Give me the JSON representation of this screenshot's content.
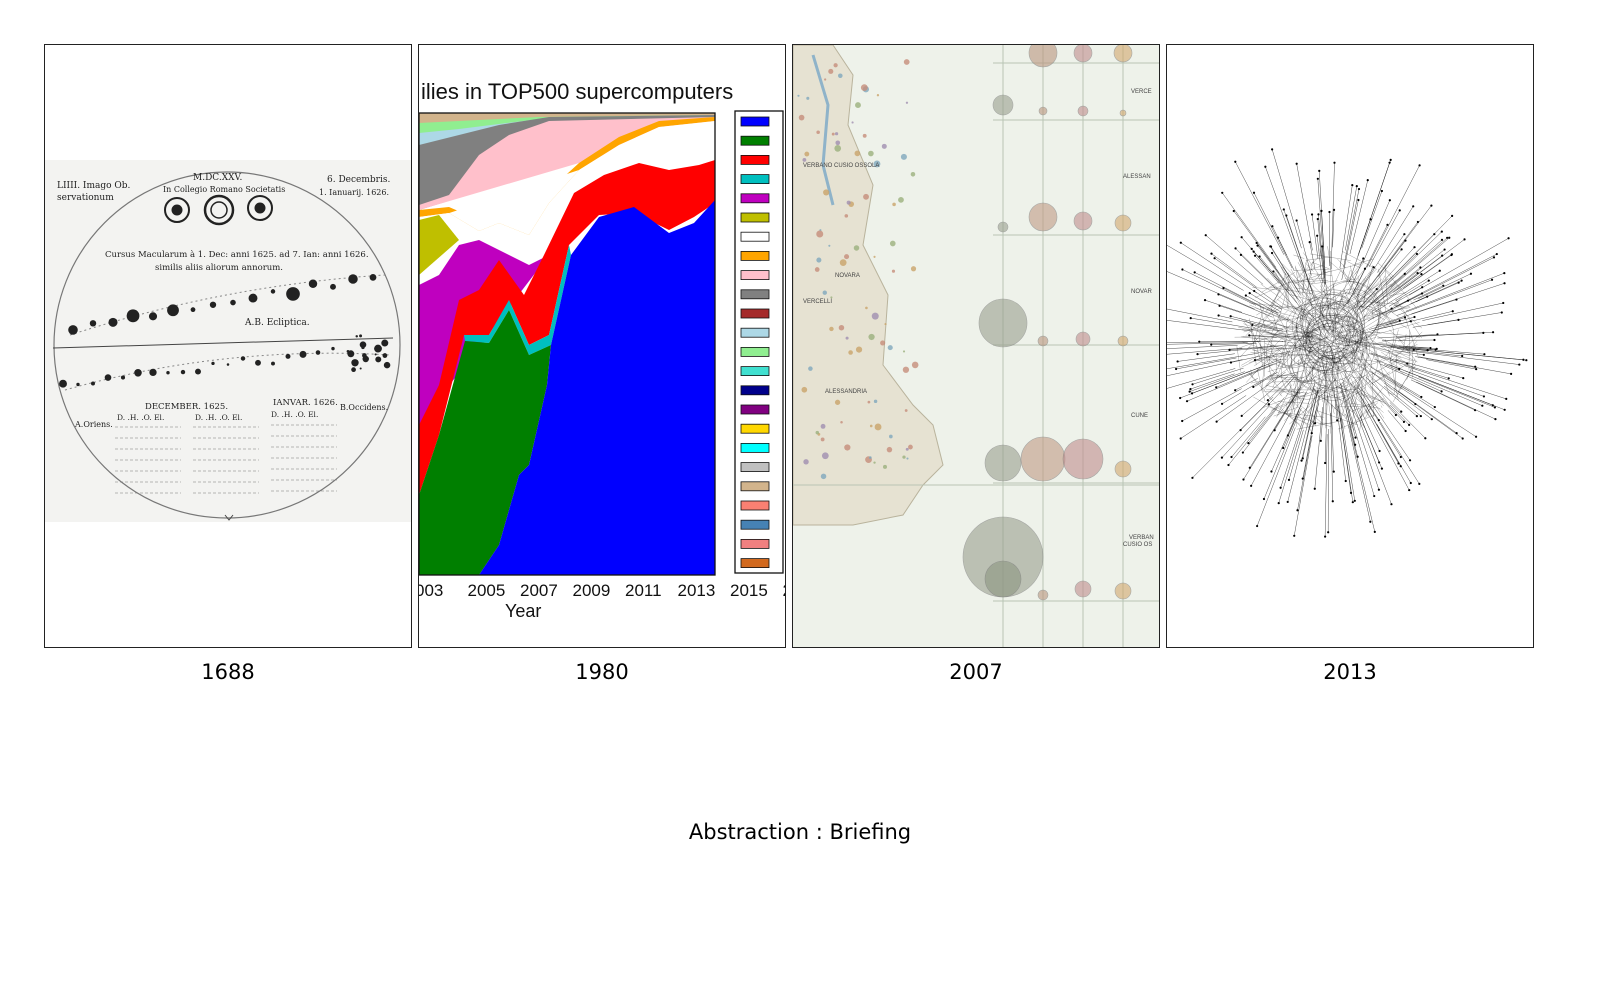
{
  "panels": [
    {
      "caption": "1688",
      "image": {
        "kind": "sunspot-drawing",
        "text": {
          "plate": "LIIII. Imago Ob.",
          "plate_line2": "servationum",
          "year_roman": "M.DC.XXV.",
          "college": "In Collegio Romano Societatis",
          "date_right": "6. Decembris.",
          "date_right2": "1. Ianuarij. 1626.",
          "course": "Cursus Macularum à 1. Dec: anni 1625. ad 7. Ian: anni 1626.",
          "course2": "similis aliis aliorum annorum.",
          "ecliptic": "A.B. Ecliptica.",
          "orient": "A.Oriens.",
          "occidens": "B.Occidens.",
          "dec": "DECEMBER. 1625.",
          "jan": "IANVAR. 1626.",
          "cols": "D. .H. .O. El."
        }
      }
    },
    {
      "caption": "1980",
      "image": {
        "kind": "stacked-area-chart-crop",
        "title": "ilies in TOP500 supercomputers",
        "xlabel": "Year",
        "xticks": [
          "003",
          "2005",
          "2007",
          "2009",
          "2011",
          "2013",
          "2015",
          "2"
        ],
        "legend_colors": [
          "#0000ff",
          "#007f00",
          "#ff0000",
          "#00bfbf",
          "#bf00bf",
          "#bfbf00",
          "#ffffff",
          "#ffa500",
          "#ffc0cb",
          "#808080",
          "#a52a2a",
          "#add8e6",
          "#90ee90",
          "#40e0d0",
          "#00008b",
          "#800080",
          "#ffd700",
          "#00ffff",
          "#c0c0c0",
          "#d2b48c",
          "#fa8072",
          "#4682b4",
          "#f08080",
          "#d2691e"
        ]
      }
    },
    {
      "caption": "2007",
      "image": {
        "kind": "map-with-circles",
        "labels": [
          "VERBANO CUSIO OSSOLA",
          "NOVARA",
          "VERCELLI",
          "ALESSANDRIA",
          "VERCE",
          "ALESSAN",
          "NOVAR",
          "CUNE",
          "VERBAN",
          "CUSIO OS"
        ]
      }
    },
    {
      "caption": "2013",
      "image": {
        "kind": "network-hairball"
      }
    }
  ],
  "footer": "Abstraction : Briefing"
}
